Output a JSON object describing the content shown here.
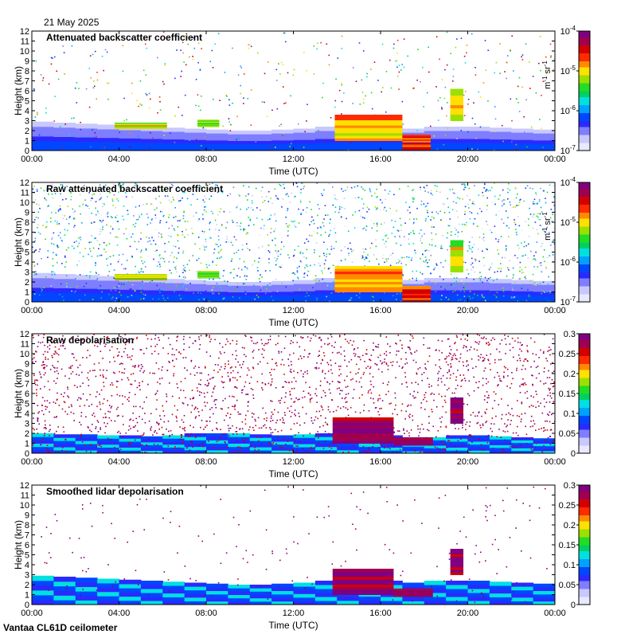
{
  "header": {
    "date": "21 May 2025"
  },
  "footer": {
    "instrument": "Vantaa CL61D ceilometer"
  },
  "colors": {
    "plot_bg": "#ffffff",
    "ground": "#1e32e6",
    "rainbow": [
      "#e8e8ff",
      "#c8c8ff",
      "#7e7eff",
      "#2a2aff",
      "#0047ff",
      "#00a2ff",
      "#00e0e0",
      "#00d060",
      "#22dd22",
      "#9be000",
      "#ffe000",
      "#ff8a00",
      "#ff2a00",
      "#d40000",
      "#a00050",
      "#800080"
    ]
  },
  "chart_data": [
    {
      "type": "heatmap",
      "title": "Attenuated backscatter coefficient",
      "xlabel": "Time (UTC)",
      "ylabel": "Height (km)",
      "xticks": [
        "00:00",
        "04:00",
        "08:00",
        "12:00",
        "16:00",
        "20:00",
        "00:00"
      ],
      "yticks": [
        "0",
        "1",
        "2",
        "3",
        "4",
        "5",
        "6",
        "7",
        "8",
        "9",
        "10",
        "11",
        "12"
      ],
      "ylim": [
        0,
        12
      ],
      "xlim_hours": [
        0,
        24
      ],
      "colorbar": {
        "scale": "log",
        "ticks": [
          "10^-7",
          "10^-6",
          "10^-5",
          "10^-4"
        ],
        "unit": "m-1 sr-1",
        "unit_base": "m",
        "unit_exp1": "-1",
        "unit_sr": "sr",
        "unit_exp2": "-1"
      },
      "boundary_layer_top_km": [
        2.9,
        2.8,
        2.7,
        2.6,
        2.5,
        2.4,
        2.3,
        2.2,
        2.1,
        2.0,
        2.0,
        2.0,
        2.1,
        2.2,
        2.4,
        2.5,
        2.4,
        2.2,
        1.4,
        2.4,
        2.4,
        2.3,
        2.2,
        2.1,
        2.0
      ],
      "cloud_layers": [
        {
          "t_start_h": 3.8,
          "t_end_h": 6.2,
          "base_km": 2.2,
          "top_km": 2.8,
          "level": 0.62
        },
        {
          "t_start_h": 7.6,
          "t_end_h": 8.6,
          "base_km": 2.4,
          "top_km": 3.1,
          "level": 0.55
        },
        {
          "t_start_h": 13.9,
          "t_end_h": 17.0,
          "base_km": 1.0,
          "top_km": 3.6,
          "level": 0.72
        },
        {
          "t_start_h": 17.0,
          "t_end_h": 18.3,
          "base_km": 0.1,
          "top_km": 1.6,
          "level": 0.78
        },
        {
          "t_start_h": 19.2,
          "t_end_h": 19.8,
          "base_km": 3.0,
          "top_km": 6.2,
          "level": 0.6
        }
      ],
      "aerosol_noise_density": 0.18,
      "noise_level_mean": 0.55,
      "noise_level_spread": 0.4
    },
    {
      "type": "heatmap",
      "title": "Raw attenuated backscatter coefficient",
      "xlabel": "Time (UTC)",
      "ylabel": "Height (km)",
      "xticks": [
        "00:00",
        "04:00",
        "08:00",
        "12:00",
        "16:00",
        "20:00",
        "00:00"
      ],
      "yticks": [
        "0",
        "1",
        "2",
        "3",
        "4",
        "5",
        "6",
        "7",
        "8",
        "9",
        "10",
        "11",
        "12"
      ],
      "ylim": [
        0,
        12
      ],
      "xlim_hours": [
        0,
        24
      ],
      "colorbar": {
        "scale": "log",
        "ticks": [
          "10^-7",
          "10^-6",
          "10^-5",
          "10^-4"
        ],
        "unit": "m-1 sr-1",
        "unit_base": "m",
        "unit_exp1": "-1",
        "unit_sr": "sr",
        "unit_exp2": "-1"
      },
      "boundary_layer_top_km": [
        2.9,
        2.8,
        2.7,
        2.6,
        2.5,
        2.4,
        2.3,
        2.2,
        2.1,
        2.0,
        2.0,
        2.0,
        2.1,
        2.2,
        2.4,
        2.5,
        2.4,
        2.2,
        1.4,
        2.4,
        2.4,
        2.3,
        2.2,
        2.1,
        2.0
      ],
      "cloud_layers": [
        {
          "t_start_h": 3.8,
          "t_end_h": 6.2,
          "base_km": 2.2,
          "top_km": 2.8,
          "level": 0.62
        },
        {
          "t_start_h": 7.6,
          "t_end_h": 8.6,
          "base_km": 2.4,
          "top_km": 3.1,
          "level": 0.55
        },
        {
          "t_start_h": 13.9,
          "t_end_h": 17.0,
          "base_km": 1.0,
          "top_km": 3.6,
          "level": 0.72
        },
        {
          "t_start_h": 17.0,
          "t_end_h": 18.3,
          "base_km": 0.1,
          "top_km": 1.6,
          "level": 0.78
        },
        {
          "t_start_h": 19.2,
          "t_end_h": 19.8,
          "base_km": 3.0,
          "top_km": 6.2,
          "level": 0.6
        }
      ],
      "aerosol_noise_density": 0.75,
      "noise_level_mean": 0.33,
      "noise_level_spread": 0.28
    },
    {
      "type": "heatmap",
      "title": "Raw depolarisation",
      "xlabel": "Time (UTC)",
      "ylabel": "Height (km)",
      "xticks": [
        "00:00",
        "04:00",
        "08:00",
        "12:00",
        "16:00",
        "20:00",
        "00:00"
      ],
      "yticks": [
        "0",
        "1",
        "2",
        "3",
        "4",
        "5",
        "6",
        "7",
        "8",
        "9",
        "10",
        "11",
        "12"
      ],
      "ylim": [
        0,
        12
      ],
      "xlim_hours": [
        0,
        24
      ],
      "colorbar": {
        "scale": "linear",
        "ticks": [
          "0",
          "0.05",
          "0.1",
          "0.15",
          "0.2",
          "0.25",
          "0.3"
        ],
        "vmin": 0,
        "vmax": 0.3
      },
      "boundary_layer_top_km": [
        2.0,
        1.9,
        1.9,
        1.8,
        1.8,
        1.7,
        1.7,
        1.8,
        2.0,
        2.0,
        1.9,
        1.8,
        1.8,
        1.9,
        2.0,
        2.0,
        1.8,
        1.4,
        1.2,
        1.6,
        1.8,
        1.7,
        1.6,
        1.5,
        1.4
      ],
      "cloud_layers": [
        {
          "t_start_h": 13.8,
          "t_end_h": 16.6,
          "base_km": 1.0,
          "top_km": 3.6,
          "level": 0.95
        },
        {
          "t_start_h": 16.6,
          "t_end_h": 18.4,
          "base_km": 0.8,
          "top_km": 1.6,
          "level": 0.95
        },
        {
          "t_start_h": 19.2,
          "t_end_h": 19.8,
          "base_km": 3.0,
          "top_km": 5.6,
          "level": 0.95
        }
      ],
      "aerosol_noise_density": 0.82,
      "noise_level_mean": 0.92,
      "noise_level_spread": 0.1
    },
    {
      "type": "heatmap",
      "title": "Smoothed lidar depolarisation",
      "xlabel": "Time (UTC)",
      "ylabel": "Height (km)",
      "xticks": [
        "00:00",
        "04:00",
        "08:00",
        "12:00",
        "16:00",
        "20:00",
        "00:00"
      ],
      "yticks": [
        "0",
        "1",
        "2",
        "3",
        "4",
        "5",
        "6",
        "7",
        "8",
        "9",
        "10",
        "11",
        "12"
      ],
      "ylim": [
        0,
        12
      ],
      "xlim_hours": [
        0,
        24
      ],
      "colorbar": {
        "scale": "linear",
        "ticks": [
          "0",
          "0.05",
          "0.1",
          "0.15",
          "0.2",
          "0.25",
          "0.3"
        ],
        "vmin": 0,
        "vmax": 0.3
      },
      "boundary_layer_top_km": [
        2.9,
        2.8,
        2.7,
        2.6,
        2.5,
        2.4,
        2.3,
        2.2,
        2.1,
        2.0,
        2.0,
        2.0,
        2.1,
        2.2,
        2.4,
        2.5,
        2.4,
        2.2,
        1.4,
        2.4,
        2.4,
        2.3,
        2.2,
        2.1,
        2.0
      ],
      "cloud_layers": [
        {
          "t_start_h": 13.8,
          "t_end_h": 16.6,
          "base_km": 1.0,
          "top_km": 3.6,
          "level": 0.95
        },
        {
          "t_start_h": 16.6,
          "t_end_h": 18.4,
          "base_km": 0.8,
          "top_km": 1.6,
          "level": 0.95
        },
        {
          "t_start_h": 19.2,
          "t_end_h": 19.8,
          "base_km": 3.0,
          "top_km": 5.6,
          "level": 0.95
        }
      ],
      "aerosol_noise_density": 0.08,
      "noise_level_mean": 0.95,
      "noise_level_spread": 0.05
    }
  ]
}
